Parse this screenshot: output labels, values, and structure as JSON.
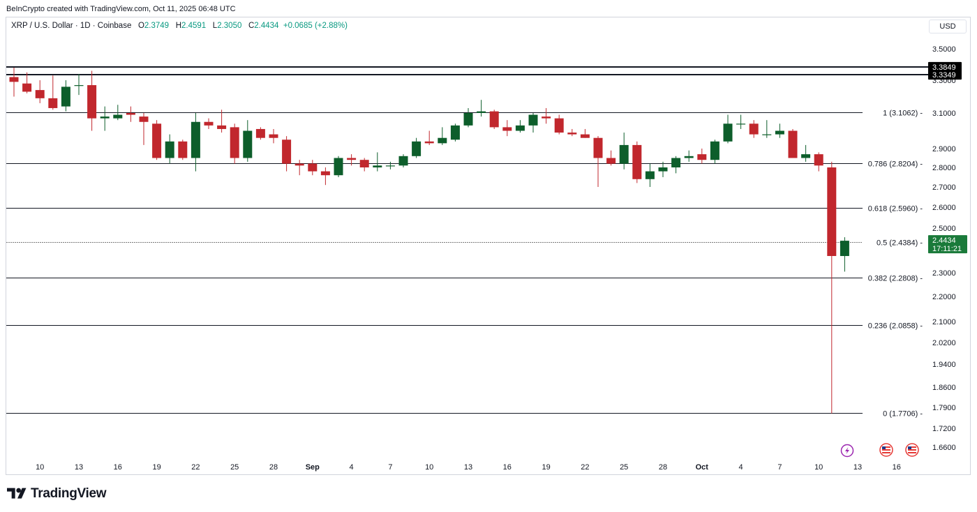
{
  "header": {
    "credit": "BeInCrypto created with TradingView.com, Oct 11, 2025 06:48 UTC"
  },
  "legend": {
    "symbol": "XRP / U.S. Dollar · 1D · Coinbase",
    "open_label": "O",
    "open": "2.3749",
    "high_label": "H",
    "high": "2.4591",
    "low_label": "L",
    "low": "2.3050",
    "close_label": "C",
    "close": "2.4434",
    "change": "+0.0685 (+2.88%)"
  },
  "currency_button": "USD",
  "brand": {
    "name": "TradingView"
  },
  "chart_data": {
    "type": "candlestick",
    "colors": {
      "up": "#0d5e2b",
      "down": "#c1272d",
      "line": "#131722",
      "last_price": "#1a7a3a"
    },
    "y_ticks": [
      "3.5000",
      "3.3000",
      "3.1000",
      "2.9000",
      "2.8000",
      "2.7000",
      "2.6000",
      "2.5000",
      "2.3000",
      "2.2000",
      "2.1000",
      "2.0200",
      "1.9400",
      "1.8600",
      "1.7900",
      "1.7200",
      "1.6600"
    ],
    "x_ticks": [
      {
        "label": "10",
        "bold": false
      },
      {
        "label": "13",
        "bold": false
      },
      {
        "label": "16",
        "bold": false
      },
      {
        "label": "19",
        "bold": false
      },
      {
        "label": "22",
        "bold": false
      },
      {
        "label": "25",
        "bold": false
      },
      {
        "label": "28",
        "bold": false
      },
      {
        "label": "Sep",
        "bold": true
      },
      {
        "label": "4",
        "bold": false
      },
      {
        "label": "7",
        "bold": false
      },
      {
        "label": "10",
        "bold": false
      },
      {
        "label": "13",
        "bold": false
      },
      {
        "label": "16",
        "bold": false
      },
      {
        "label": "19",
        "bold": false
      },
      {
        "label": "22",
        "bold": false
      },
      {
        "label": "25",
        "bold": false
      },
      {
        "label": "28",
        "bold": false
      },
      {
        "label": "Oct",
        "bold": true
      },
      {
        "label": "4",
        "bold": false
      },
      {
        "label": "7",
        "bold": false
      },
      {
        "label": "10",
        "bold": false
      },
      {
        "label": "13",
        "bold": false
      },
      {
        "label": "16",
        "bold": false
      }
    ],
    "resistance_badges": [
      "3.3849",
      "3.3349"
    ],
    "fib_levels": [
      {
        "label": "1 (3.1062)",
        "price": 3.1062
      },
      {
        "label": "0.786 (2.8204)",
        "price": 2.8204
      },
      {
        "label": "0.618 (2.5960)",
        "price": 2.596
      },
      {
        "label": "0.5 (2.4384)",
        "price": 2.4384
      },
      {
        "label": "0.382 (2.2808)",
        "price": 2.2808
      },
      {
        "label": "0.236 (2.0858)",
        "price": 2.0858
      },
      {
        "label": "0 (1.7706)",
        "price": 1.7706
      }
    ],
    "last_price": {
      "value": "2.4434",
      "countdown": "17:11:21"
    },
    "candles": [
      {
        "date": "Aug 8",
        "o": 3.32,
        "h": 3.38,
        "l": 3.2,
        "c": 3.29
      },
      {
        "date": "Aug 9",
        "o": 3.28,
        "h": 3.35,
        "l": 3.22,
        "c": 3.23
      },
      {
        "date": "Aug 10",
        "o": 3.24,
        "h": 3.3,
        "l": 3.16,
        "c": 3.19
      },
      {
        "date": "Aug 11",
        "o": 3.19,
        "h": 3.33,
        "l": 3.12,
        "c": 3.13
      },
      {
        "date": "Aug 12",
        "o": 3.14,
        "h": 3.3,
        "l": 3.11,
        "c": 3.26
      },
      {
        "date": "Aug 13",
        "o": 3.27,
        "h": 3.34,
        "l": 3.21,
        "c": 3.27
      },
      {
        "date": "Aug 14",
        "o": 3.27,
        "h": 3.36,
        "l": 3.0,
        "c": 3.07
      },
      {
        "date": "Aug 15",
        "o": 3.07,
        "h": 3.14,
        "l": 3.0,
        "c": 3.08
      },
      {
        "date": "Aug 16",
        "o": 3.07,
        "h": 3.15,
        "l": 3.06,
        "c": 3.09
      },
      {
        "date": "Aug 17",
        "o": 3.1,
        "h": 3.14,
        "l": 3.05,
        "c": 3.09
      },
      {
        "date": "Aug 18",
        "o": 3.08,
        "h": 3.1,
        "l": 2.92,
        "c": 3.05
      },
      {
        "date": "Aug 19",
        "o": 3.04,
        "h": 3.06,
        "l": 2.84,
        "c": 2.85
      },
      {
        "date": "Aug 20",
        "o": 2.85,
        "h": 2.98,
        "l": 2.82,
        "c": 2.94
      },
      {
        "date": "Aug 21",
        "o": 2.94,
        "h": 2.95,
        "l": 2.84,
        "c": 2.85
      },
      {
        "date": "Aug 22",
        "o": 2.85,
        "h": 3.1,
        "l": 2.78,
        "c": 3.05
      },
      {
        "date": "Aug 23",
        "o": 3.05,
        "h": 3.07,
        "l": 3.01,
        "c": 3.03
      },
      {
        "date": "Aug 24",
        "o": 3.03,
        "h": 3.12,
        "l": 2.99,
        "c": 3.01
      },
      {
        "date": "Aug 25",
        "o": 3.02,
        "h": 3.04,
        "l": 2.82,
        "c": 2.85
      },
      {
        "date": "Aug 26",
        "o": 2.85,
        "h": 3.06,
        "l": 2.83,
        "c": 3.0
      },
      {
        "date": "Aug 27",
        "o": 3.01,
        "h": 3.02,
        "l": 2.95,
        "c": 2.96
      },
      {
        "date": "Aug 28",
        "o": 2.98,
        "h": 3.01,
        "l": 2.93,
        "c": 2.96
      },
      {
        "date": "Aug 29",
        "o": 2.95,
        "h": 2.97,
        "l": 2.78,
        "c": 2.82
      },
      {
        "date": "Aug 30",
        "o": 2.82,
        "h": 2.84,
        "l": 2.76,
        "c": 2.81
      },
      {
        "date": "Aug 31",
        "o": 2.82,
        "h": 2.84,
        "l": 2.76,
        "c": 2.78
      },
      {
        "date": "Sep 1",
        "o": 2.78,
        "h": 2.8,
        "l": 2.71,
        "c": 2.76
      },
      {
        "date": "Sep 2",
        "o": 2.76,
        "h": 2.86,
        "l": 2.75,
        "c": 2.85
      },
      {
        "date": "Sep 3",
        "o": 2.85,
        "h": 2.87,
        "l": 2.81,
        "c": 2.84
      },
      {
        "date": "Sep 4",
        "o": 2.84,
        "h": 2.85,
        "l": 2.78,
        "c": 2.8
      },
      {
        "date": "Sep 5",
        "o": 2.8,
        "h": 2.88,
        "l": 2.78,
        "c": 2.81
      },
      {
        "date": "Sep 6",
        "o": 2.81,
        "h": 2.83,
        "l": 2.79,
        "c": 2.81
      },
      {
        "date": "Sep 7",
        "o": 2.81,
        "h": 2.87,
        "l": 2.8,
        "c": 2.86
      },
      {
        "date": "Sep 8",
        "o": 2.86,
        "h": 2.96,
        "l": 2.85,
        "c": 2.94
      },
      {
        "date": "Sep 9",
        "o": 2.94,
        "h": 3.0,
        "l": 2.92,
        "c": 2.93
      },
      {
        "date": "Sep 10",
        "o": 2.93,
        "h": 3.02,
        "l": 2.92,
        "c": 2.96
      },
      {
        "date": "Sep 11",
        "o": 2.95,
        "h": 3.04,
        "l": 2.94,
        "c": 3.03
      },
      {
        "date": "Sep 12",
        "o": 3.03,
        "h": 3.13,
        "l": 3.02,
        "c": 3.1
      },
      {
        "date": "Sep 13",
        "o": 3.1,
        "h": 3.18,
        "l": 3.08,
        "c": 3.11
      },
      {
        "date": "Sep 14",
        "o": 3.11,
        "h": 3.12,
        "l": 3.01,
        "c": 3.02
      },
      {
        "date": "Sep 15",
        "o": 3.02,
        "h": 3.06,
        "l": 2.97,
        "c": 3.0
      },
      {
        "date": "Sep 16",
        "o": 3.0,
        "h": 3.06,
        "l": 2.99,
        "c": 3.03
      },
      {
        "date": "Sep 17",
        "o": 3.03,
        "h": 3.1,
        "l": 2.99,
        "c": 3.09
      },
      {
        "date": "Sep 18",
        "o": 3.08,
        "h": 3.13,
        "l": 3.04,
        "c": 3.07
      },
      {
        "date": "Sep 19",
        "o": 3.07,
        "h": 3.09,
        "l": 2.98,
        "c": 2.99
      },
      {
        "date": "Sep 20",
        "o": 2.99,
        "h": 3.01,
        "l": 2.97,
        "c": 2.98
      },
      {
        "date": "Sep 21",
        "o": 2.98,
        "h": 3.01,
        "l": 2.96,
        "c": 2.96
      },
      {
        "date": "Sep 22",
        "o": 2.96,
        "h": 2.97,
        "l": 2.7,
        "c": 2.85
      },
      {
        "date": "Sep 23",
        "o": 2.85,
        "h": 2.89,
        "l": 2.81,
        "c": 2.82
      },
      {
        "date": "Sep 24",
        "o": 2.82,
        "h": 2.99,
        "l": 2.79,
        "c": 2.92
      },
      {
        "date": "Sep 25",
        "o": 2.92,
        "h": 2.94,
        "l": 2.72,
        "c": 2.74
      },
      {
        "date": "Sep 26",
        "o": 2.74,
        "h": 2.82,
        "l": 2.7,
        "c": 2.78
      },
      {
        "date": "Sep 27",
        "o": 2.78,
        "h": 2.83,
        "l": 2.75,
        "c": 2.8
      },
      {
        "date": "Sep 28",
        "o": 2.8,
        "h": 2.86,
        "l": 2.77,
        "c": 2.85
      },
      {
        "date": "Sep 29",
        "o": 2.85,
        "h": 2.89,
        "l": 2.83,
        "c": 2.86
      },
      {
        "date": "Sep 30",
        "o": 2.87,
        "h": 2.9,
        "l": 2.82,
        "c": 2.84
      },
      {
        "date": "Oct 1",
        "o": 2.84,
        "h": 2.95,
        "l": 2.82,
        "c": 2.94
      },
      {
        "date": "Oct 2",
        "o": 2.94,
        "h": 3.09,
        "l": 2.93,
        "c": 3.04
      },
      {
        "date": "Oct 3",
        "o": 3.04,
        "h": 3.09,
        "l": 3.01,
        "c": 3.04
      },
      {
        "date": "Oct 4",
        "o": 3.04,
        "h": 3.06,
        "l": 2.96,
        "c": 2.98
      },
      {
        "date": "Oct 5",
        "o": 2.98,
        "h": 3.06,
        "l": 2.96,
        "c": 2.98
      },
      {
        "date": "Oct 6",
        "o": 2.98,
        "h": 3.04,
        "l": 2.96,
        "c": 3.0
      },
      {
        "date": "Oct 7",
        "o": 3.0,
        "h": 3.01,
        "l": 2.85,
        "c": 2.85
      },
      {
        "date": "Oct 8",
        "o": 2.85,
        "h": 2.92,
        "l": 2.83,
        "c": 2.87
      },
      {
        "date": "Oct 9",
        "o": 2.87,
        "h": 2.88,
        "l": 2.78,
        "c": 2.81
      },
      {
        "date": "Oct 10",
        "o": 2.8,
        "h": 2.83,
        "l": 1.77,
        "c": 2.375
      },
      {
        "date": "Oct 11",
        "o": 2.3749,
        "h": 2.4591,
        "l": 2.305,
        "c": 2.4434
      }
    ]
  }
}
